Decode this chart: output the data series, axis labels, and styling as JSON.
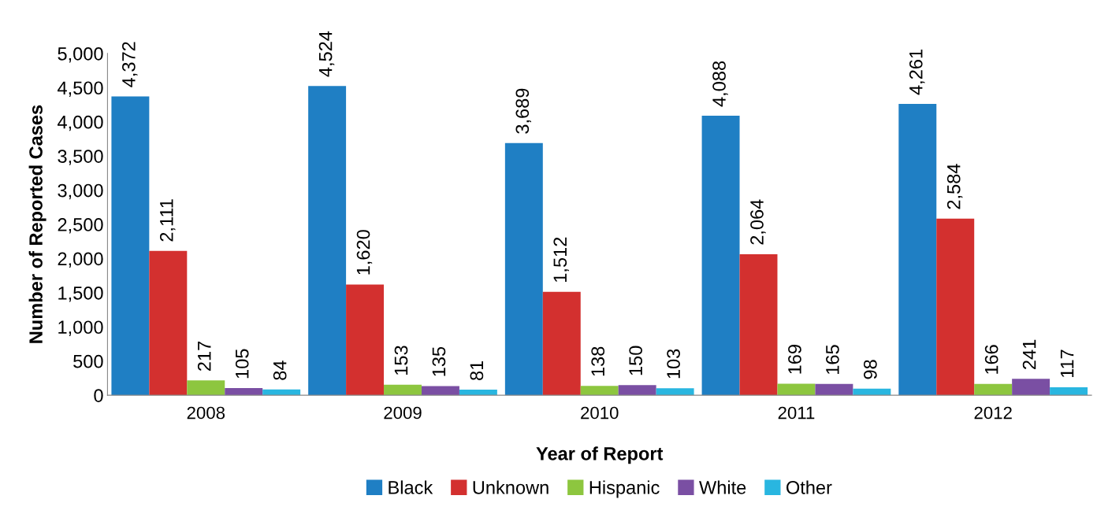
{
  "chart_data": {
    "type": "bar",
    "xlabel": "Year of Report",
    "ylabel": "Number of Reported Cases",
    "categories": [
      "2008",
      "2009",
      "2010",
      "2011",
      "2012"
    ],
    "series": [
      {
        "name": "Black",
        "color": "#1f7fc4",
        "values": [
          4372,
          4524,
          3689,
          4088,
          4261
        ],
        "value_labels": [
          "4,372",
          "4,524",
          "3,689",
          "4,088",
          "4,261"
        ]
      },
      {
        "name": "Unknown",
        "color": "#d3302f",
        "values": [
          2111,
          1620,
          1512,
          2064,
          2584
        ],
        "value_labels": [
          "2,111",
          "1,620",
          "1,512",
          "2,064",
          "2,584"
        ]
      },
      {
        "name": "Hispanic",
        "color": "#8dc63f",
        "values": [
          217,
          153,
          138,
          169,
          166
        ],
        "value_labels": [
          "217",
          "153",
          "138",
          "169",
          "166"
        ]
      },
      {
        "name": "White",
        "color": "#7a4fa3",
        "values": [
          105,
          135,
          150,
          165,
          241
        ],
        "value_labels": [
          "105",
          "135",
          "150",
          "165",
          "241"
        ]
      },
      {
        "name": "Other",
        "color": "#29b6e0",
        "values": [
          84,
          81,
          103,
          98,
          117
        ],
        "value_labels": [
          "84",
          "81",
          "103",
          "98",
          "117"
        ]
      }
    ],
    "ylim": [
      0,
      5000
    ],
    "yticks": [
      {
        "value": 0,
        "label": "0"
      },
      {
        "value": 500,
        "label": "500"
      },
      {
        "value": 1000,
        "label": "1,000"
      },
      {
        "value": 1500,
        "label": "1,500"
      },
      {
        "value": 2000,
        "label": "2,000"
      },
      {
        "value": 2500,
        "label": "2,500"
      },
      {
        "value": 3000,
        "label": "3,000"
      },
      {
        "value": 3500,
        "label": "3,500"
      },
      {
        "value": 4000,
        "label": "4,000"
      },
      {
        "value": 4500,
        "label": "4,500"
      },
      {
        "value": 5000,
        "label": "5,000"
      }
    ],
    "legend": "bottom",
    "grid": false
  }
}
